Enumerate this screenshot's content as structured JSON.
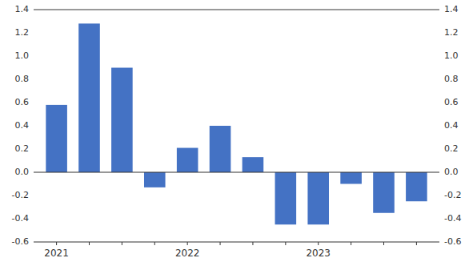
{
  "chart_data": {
    "type": "bar",
    "categories": [
      "2021",
      null,
      null,
      null,
      "2022",
      null,
      null,
      null,
      "2023",
      null,
      null,
      null
    ],
    "values": [
      0.58,
      1.28,
      0.9,
      -0.13,
      0.21,
      0.4,
      0.13,
      -0.45,
      -0.45,
      -0.1,
      -0.35,
      -0.25
    ],
    "color": "#4472C4",
    "ylim": [
      -0.6,
      1.4
    ],
    "yticks": [
      -0.6,
      -0.4,
      -0.2,
      {
        "value": 0.0,
        "label": "0.0"
      },
      0.2,
      0.4,
      0.6,
      0.8,
      {
        "value": 1.0,
        "label": "1.0"
      },
      1.2,
      1.4
    ],
    "y2lim": [
      -0.6,
      1.4
    ],
    "y2ticks": [
      -0.6,
      -0.4,
      -0.2,
      {
        "value": 0.0,
        "label": "0.0"
      },
      0.2,
      0.4,
      0.6,
      0.8,
      {
        "value": 1.0,
        "label": "1.0"
      },
      1.2,
      1.4
    ],
    "grid": false
  }
}
